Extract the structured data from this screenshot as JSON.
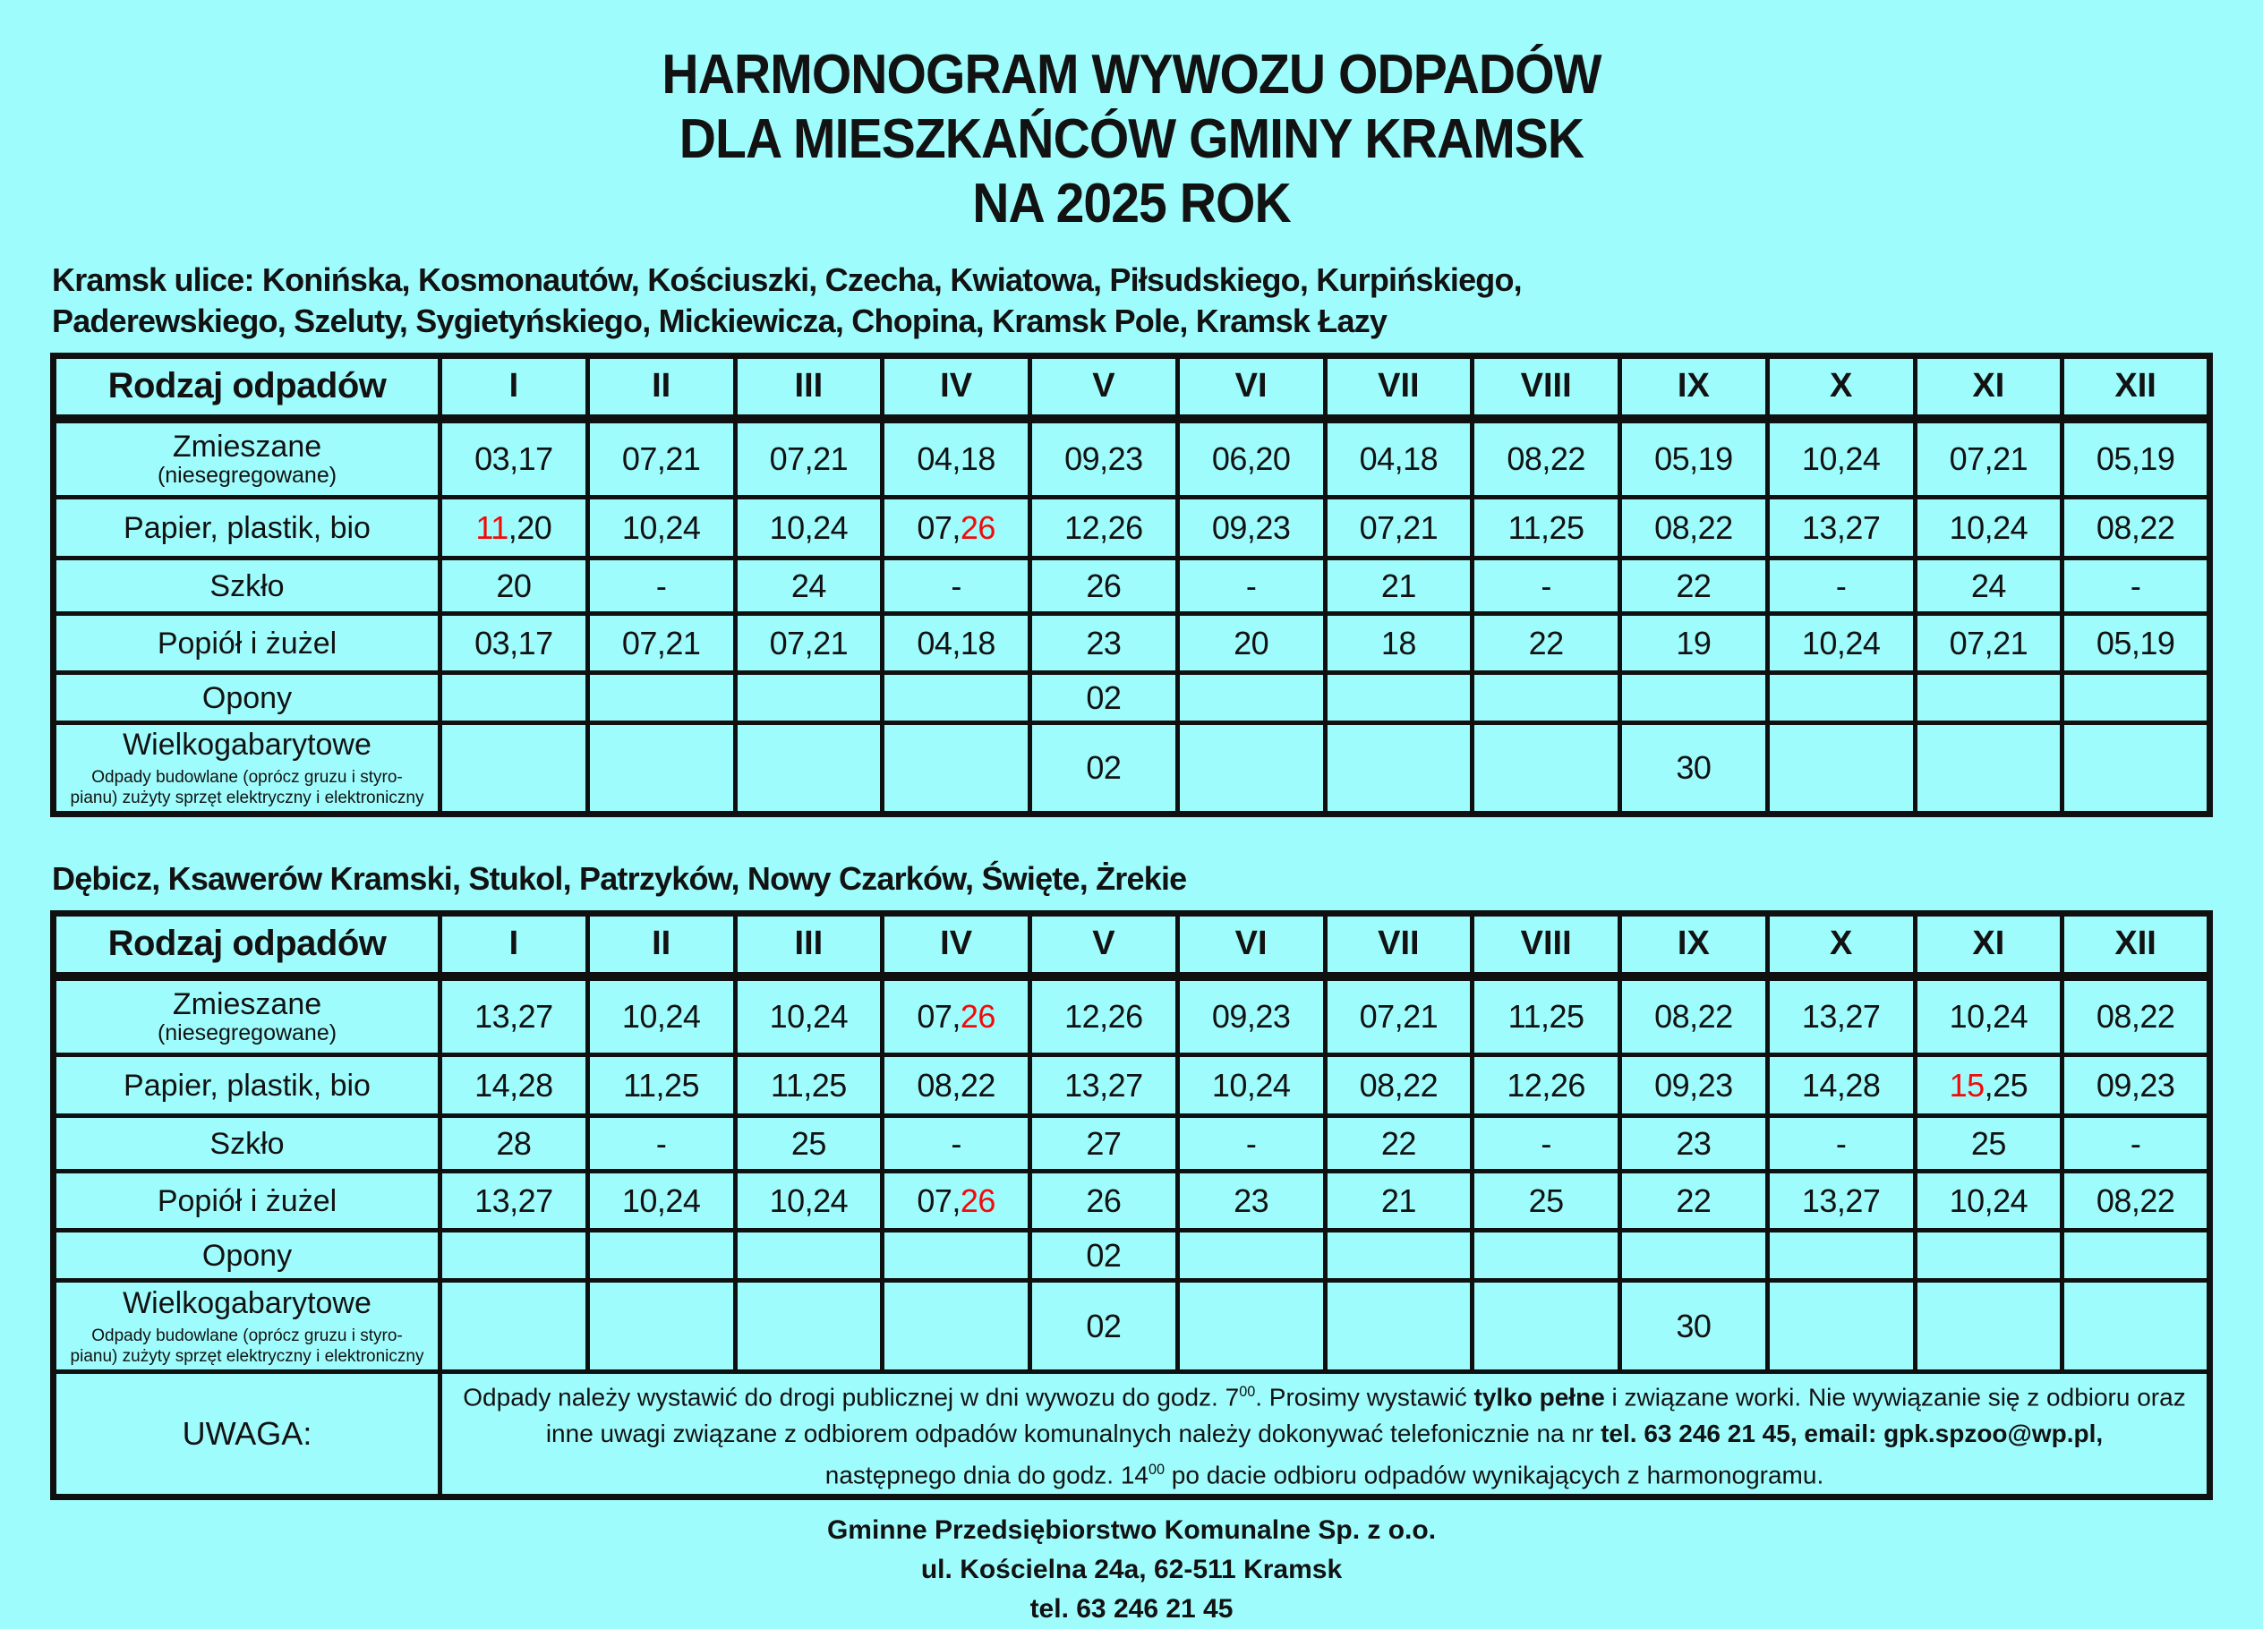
{
  "page": {
    "bg": "#9ffcfc",
    "accent_red": "#f10b0b",
    "title_lines": [
      "HARMONOGRAM WYWOZU ODPADÓW",
      "DLA MIESZKAŃCÓW GMINY KRAMSK",
      "NA 2025 ROK"
    ]
  },
  "section1": {
    "heading_lines": [
      "Kramsk ulice: Konińska, Kosmonautów, Kościuszki, Czecha, Kwiatowa, Piłsudskiego, Kurpińskiego,",
      "Paderewskiego, Szeluty, Sygietyńskiego, Mickiewicza, Chopina,  Kramsk Pole, Kramsk Łazy"
    ],
    "table": {
      "header": {
        "label": "Rodzaj odpadów",
        "months": [
          "I",
          "II",
          "III",
          "IV",
          "V",
          "VI",
          "VII",
          "VIII",
          "IX",
          "X",
          "XI",
          "XII"
        ]
      },
      "rows": [
        {
          "label": "Zmieszane",
          "sublabel": "(niesegregowane)",
          "cells": [
            "03,17",
            "07,21",
            "07,21",
            "04,18",
            "09,23",
            "06,20",
            "04,18",
            "08,22",
            "05,19",
            "10,24",
            "07,21",
            "05,19"
          ]
        },
        {
          "label": "Papier, plastik, bio",
          "cells": [
            [
              {
                "t": "11",
                "red": true
              },
              {
                "t": ",20"
              }
            ],
            "10,24",
            "10,24",
            [
              {
                "t": "07,"
              },
              {
                "t": "26",
                "red": true
              }
            ],
            "12,26",
            "09,23",
            "07,21",
            "11,25",
            "08,22",
            "13,27",
            "10,24",
            "08,22"
          ]
        },
        {
          "label": "Szkło",
          "cells": [
            "20",
            "-",
            "24",
            "-",
            "26",
            "-",
            "21",
            "-",
            "22",
            "-",
            "24",
            "-"
          ]
        },
        {
          "label": "Popiół i żużel",
          "cells": [
            "03,17",
            "07,21",
            "07,21",
            "04,18",
            "23",
            "20",
            "18",
            "22",
            "19",
            "10,24",
            "07,21",
            "05,19"
          ]
        },
        {
          "label": "Opony",
          "cells": [
            "",
            "",
            "",
            "",
            "02",
            "",
            "",
            "",
            "",
            "",
            "",
            ""
          ]
        },
        {
          "label": "Wielkogabarytowe",
          "note_lines": [
            "Odpady budowlane (oprócz gruzu i styro-",
            "pianu) zużyty sprzęt elektryczny i elektroniczny"
          ],
          "cells": [
            "",
            "",
            "",
            "",
            "02",
            "",
            "",
            "",
            "30",
            "",
            "",
            ""
          ]
        }
      ]
    }
  },
  "section2": {
    "heading_lines": [
      "Dębicz, Ksawerów Kramski, Stukol, Patrzyków, Nowy Czarków, Święte, Żrekie"
    ],
    "table": {
      "header": {
        "label": "Rodzaj odpadów",
        "months": [
          "I",
          "II",
          "III",
          "IV",
          "V",
          "VI",
          "VII",
          "VIII",
          "IX",
          "X",
          "XI",
          "XII"
        ]
      },
      "rows": [
        {
          "label": "Zmieszane",
          "sublabel": "(niesegregowane)",
          "cells": [
            "13,27",
            "10,24",
            "10,24",
            [
              {
                "t": "07,"
              },
              {
                "t": "26",
                "red": true
              }
            ],
            "12,26",
            "09,23",
            "07,21",
            "11,25",
            "08,22",
            "13,27",
            "10,24",
            "08,22"
          ]
        },
        {
          "label": "Papier, plastik, bio",
          "cells": [
            "14,28",
            "11,25",
            "11,25",
            "08,22",
            "13,27",
            "10,24",
            "08,22",
            "12,26",
            "09,23",
            "14,28",
            [
              {
                "t": "15",
                "red": true
              },
              {
                "t": ",25"
              }
            ],
            "09,23"
          ]
        },
        {
          "label": "Szkło",
          "cells": [
            "28",
            "-",
            "25",
            "-",
            "27",
            "-",
            "22",
            "-",
            "23",
            "-",
            "25",
            "-"
          ]
        },
        {
          "label": "Popiół i żużel",
          "cells": [
            "13,27",
            "10,24",
            "10,24",
            [
              {
                "t": "07,"
              },
              {
                "t": "26",
                "red": true
              }
            ],
            "26",
            "23",
            "21",
            "25",
            "22",
            "13,27",
            "10,24",
            "08,22"
          ]
        },
        {
          "label": "Opony",
          "cells": [
            "",
            "",
            "",
            "",
            "02",
            "",
            "",
            "",
            "",
            "",
            "",
            ""
          ]
        },
        {
          "label": "Wielkogabarytowe",
          "note_lines": [
            "Odpady budowlane (oprócz gruzu i styro-",
            "pianu) zużyty sprzęt elektryczny i elektroniczny"
          ],
          "cells": [
            "",
            "",
            "",
            "",
            "02",
            "",
            "",
            "",
            "30",
            "",
            "",
            ""
          ]
        }
      ],
      "uwaga": {
        "label": "UWAGA:",
        "lines": [
          [
            {
              "t": "Odpady należy wystawić do drogi publicznej w dni wywozu do godz. 7"
            },
            {
              "t": "00",
              "sup": true
            },
            {
              "t": ". Prosimy wystawić "
            },
            {
              "t": "tylko pełne",
              "bold": true
            },
            {
              "t": " i związane worki.  Nie wywiązanie się z odbioru oraz"
            }
          ],
          [
            {
              "t": "inne uwagi związane z odbiorem odpadów komunalnych należy dokonywać telefonicznie na nr "
            },
            {
              "t": "tel. 63 246 21 45, email: gpk.spzoo@wp.pl,",
              "bold": true
            }
          ],
          [
            {
              "t": "następnego dnia  do godz. 14"
            },
            {
              "t": "00",
              "sup": true
            },
            {
              "t": " po dacie odbioru odpadów wynikających z harmonogramu."
            }
          ]
        ]
      }
    }
  },
  "footer_lines": [
    "Gminne Przedsiębiorstwo Komunalne Sp. z o.o.",
    "ul. Kościelna 24a, 62-511 Kramsk",
    "tel. 63 246 21 45"
  ]
}
